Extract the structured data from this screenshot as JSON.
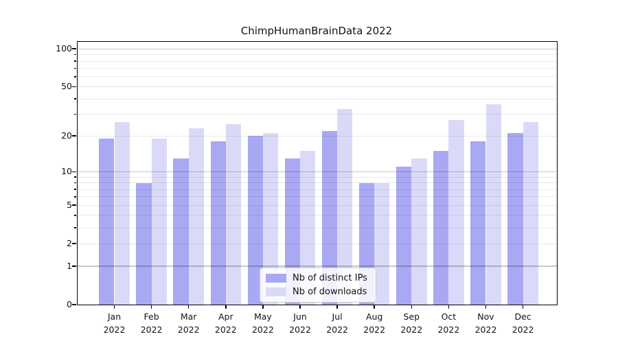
{
  "chart_data": {
    "type": "bar",
    "title": "ChimpHumanBrainData 2022",
    "categories": [
      "Jan",
      "Feb",
      "Mar",
      "Apr",
      "May",
      "Jun",
      "Jul",
      "Aug",
      "Sep",
      "Oct",
      "Nov",
      "Dec"
    ],
    "year_label": "2022",
    "series": [
      {
        "name": "Nb of distinct IPs",
        "color": "#a8a8f3",
        "values": [
          19,
          8,
          13,
          18,
          20,
          13,
          22,
          8,
          11,
          15,
          18,
          21
        ]
      },
      {
        "name": "Nb of downloads",
        "color": "#dadaf8",
        "values": [
          26,
          19,
          23,
          25,
          21,
          15,
          33,
          8,
          13,
          27,
          36,
          26
        ]
      }
    ],
    "yscale": "log1p",
    "ylim": [
      0,
      114
    ],
    "yticks": [
      100,
      50,
      20,
      10,
      5,
      2,
      1,
      0
    ],
    "major_gridlines": [
      1,
      10,
      100
    ],
    "minor_gridlines": [
      2,
      3,
      4,
      5,
      6,
      7,
      8,
      9,
      20,
      30,
      40,
      50,
      60,
      70,
      80,
      90
    ],
    "legend_position": "lower center",
    "grid": true
  },
  "colors": {
    "major_grid": "rgba(0,0,0,0.22)",
    "minor_grid": "rgba(0,0,0,0.085)",
    "spine": "#000000",
    "text": "#111111",
    "legend_border": "#cccccc",
    "legend_bg": "rgba(255,255,255,0.85)"
  }
}
